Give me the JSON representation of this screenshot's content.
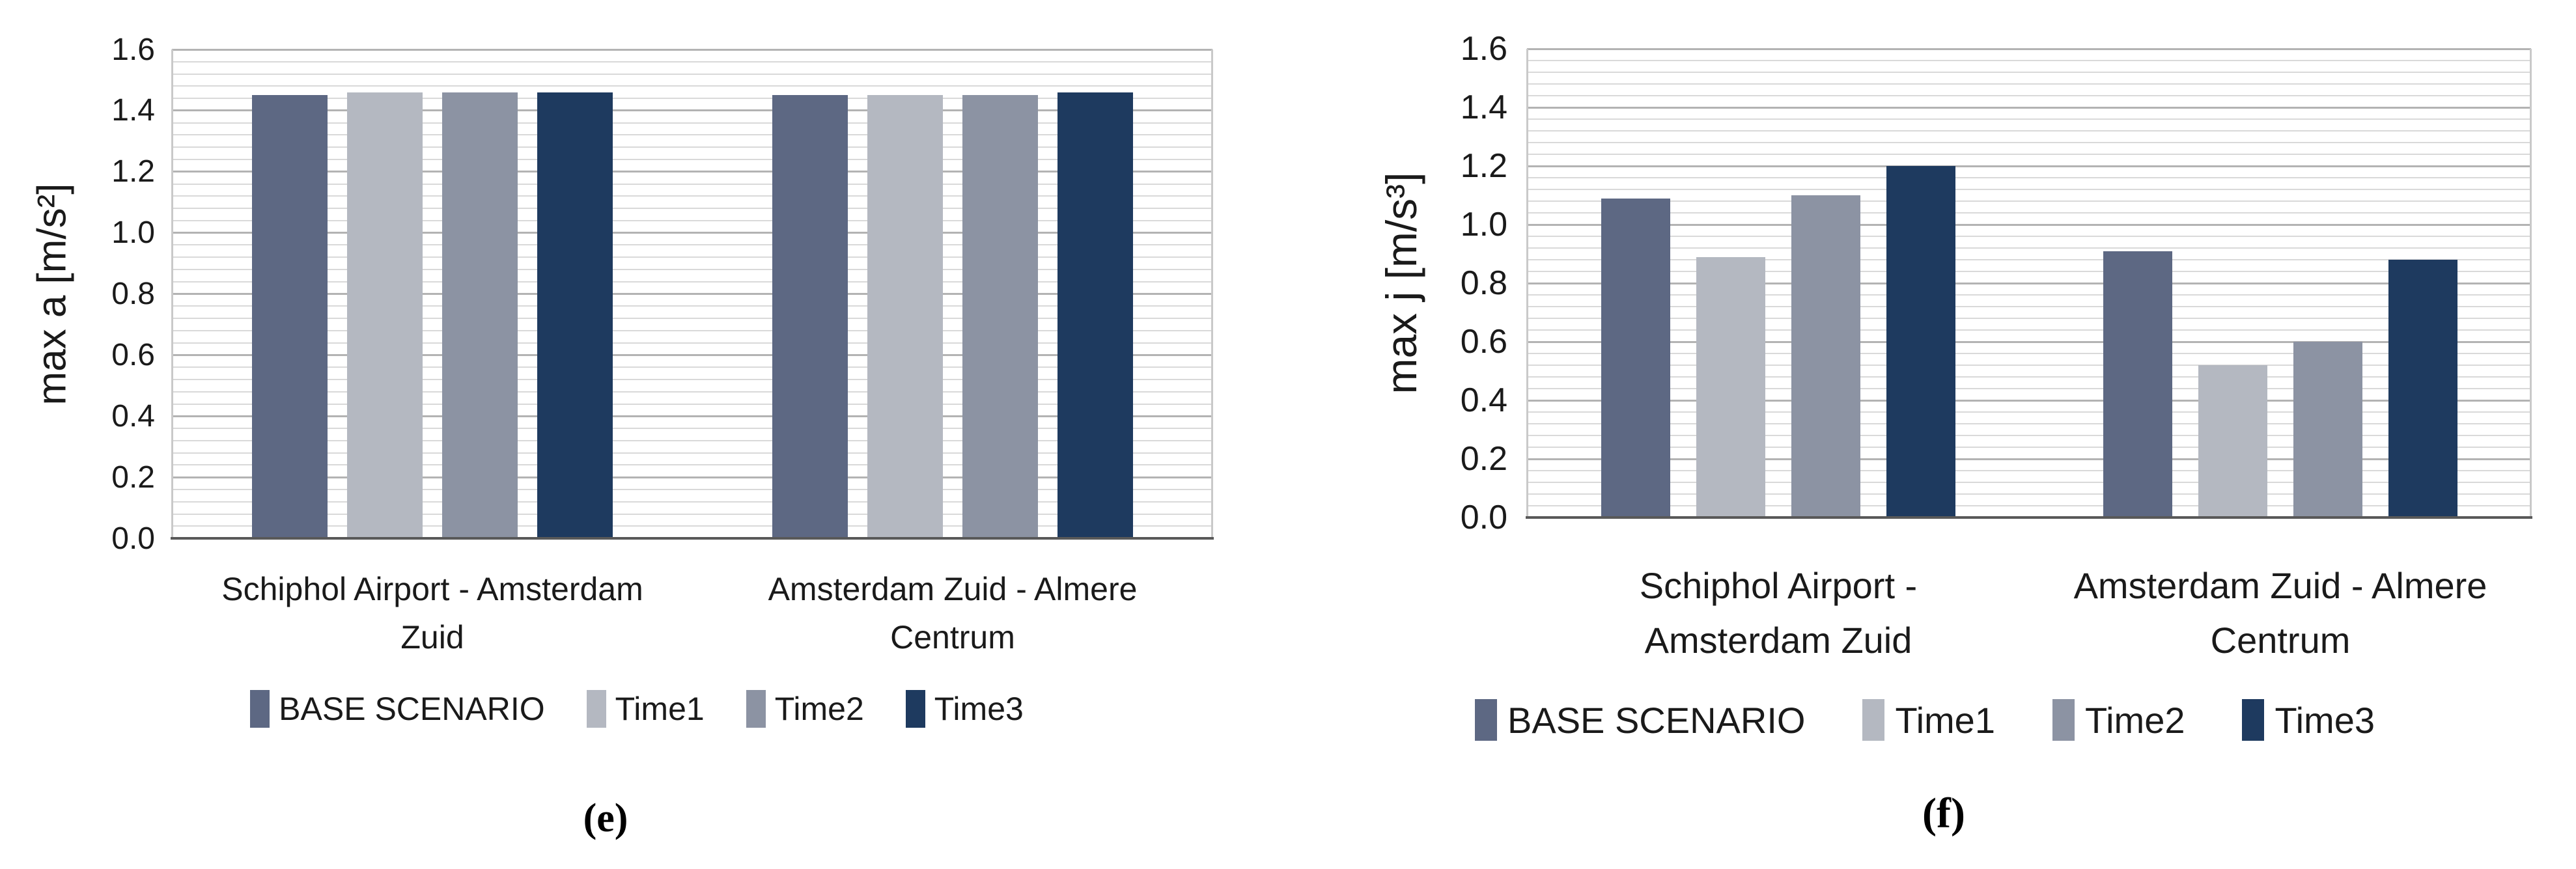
{
  "legend": {
    "items": [
      {
        "label": "BASE SCENARIO",
        "color": "#5d6883"
      },
      {
        "label": "Time1",
        "color": "#b4b8c1"
      },
      {
        "label": "Time2",
        "color": "#8c93a3"
      },
      {
        "label": "Time3",
        "color": "#1e3a5f"
      }
    ],
    "position": "bottom"
  },
  "chart_data": [
    {
      "id": "e",
      "type": "bar",
      "caption": "(e)",
      "ylabel": "max a [m/s²]",
      "xlabel": "",
      "categories": [
        "Schiphol Airport - Amsterdam Zuid",
        "Amsterdam Zuid - Almere Centrum"
      ],
      "category_labels_wrapped": [
        [
          "Schiphol Airport - Amsterdam",
          "Zuid"
        ],
        [
          "Amsterdam Zuid - Almere",
          "Centrum"
        ]
      ],
      "series": [
        {
          "name": "BASE SCENARIO",
          "color": "#5d6883",
          "values": [
            1.45,
            1.45
          ]
        },
        {
          "name": "Time1",
          "color": "#b4b8c1",
          "values": [
            1.46,
            1.45
          ]
        },
        {
          "name": "Time2",
          "color": "#8c93a3",
          "values": [
            1.46,
            1.45
          ]
        },
        {
          "name": "Time3",
          "color": "#1e3a5f",
          "values": [
            1.46,
            1.46
          ]
        }
      ],
      "ylim": [
        0,
        1.6
      ],
      "ytick_step": 0.2,
      "minor_unit": 0.04,
      "ytick_labels": [
        "0.0",
        "0.2",
        "0.4",
        "0.6",
        "0.8",
        "1.0",
        "1.2",
        "1.4",
        "1.6"
      ],
      "grid": "horizontal, minor + major",
      "legend_position": "bottom"
    },
    {
      "id": "f",
      "type": "bar",
      "caption": "(f)",
      "ylabel": "max j [m/s³]",
      "xlabel": "",
      "categories": [
        "Schiphol Airport - Amsterdam Zuid",
        "Amsterdam Zuid - Almere Centrum"
      ],
      "category_labels_wrapped": [
        [
          "Schiphol Airport -",
          "Amsterdam Zuid"
        ],
        [
          "Amsterdam Zuid - Almere",
          "Centrum"
        ]
      ],
      "series": [
        {
          "name": "BASE SCENARIO",
          "color": "#5d6883",
          "values": [
            1.09,
            0.91
          ]
        },
        {
          "name": "Time1",
          "color": "#b4b8c1",
          "values": [
            0.89,
            0.52
          ]
        },
        {
          "name": "Time2",
          "color": "#8c93a3",
          "values": [
            1.1,
            0.6
          ]
        },
        {
          "name": "Time3",
          "color": "#1e3a5f",
          "values": [
            1.2,
            0.88
          ]
        }
      ],
      "ylim": [
        0,
        1.6
      ],
      "ytick_step": 0.2,
      "minor_unit": 0.04,
      "ytick_labels": [
        "0.0",
        "0.2",
        "0.4",
        "0.6",
        "0.8",
        "1.0",
        "1.2",
        "1.4",
        "1.6"
      ],
      "grid": "horizontal, minor + major",
      "legend_position": "bottom"
    }
  ]
}
